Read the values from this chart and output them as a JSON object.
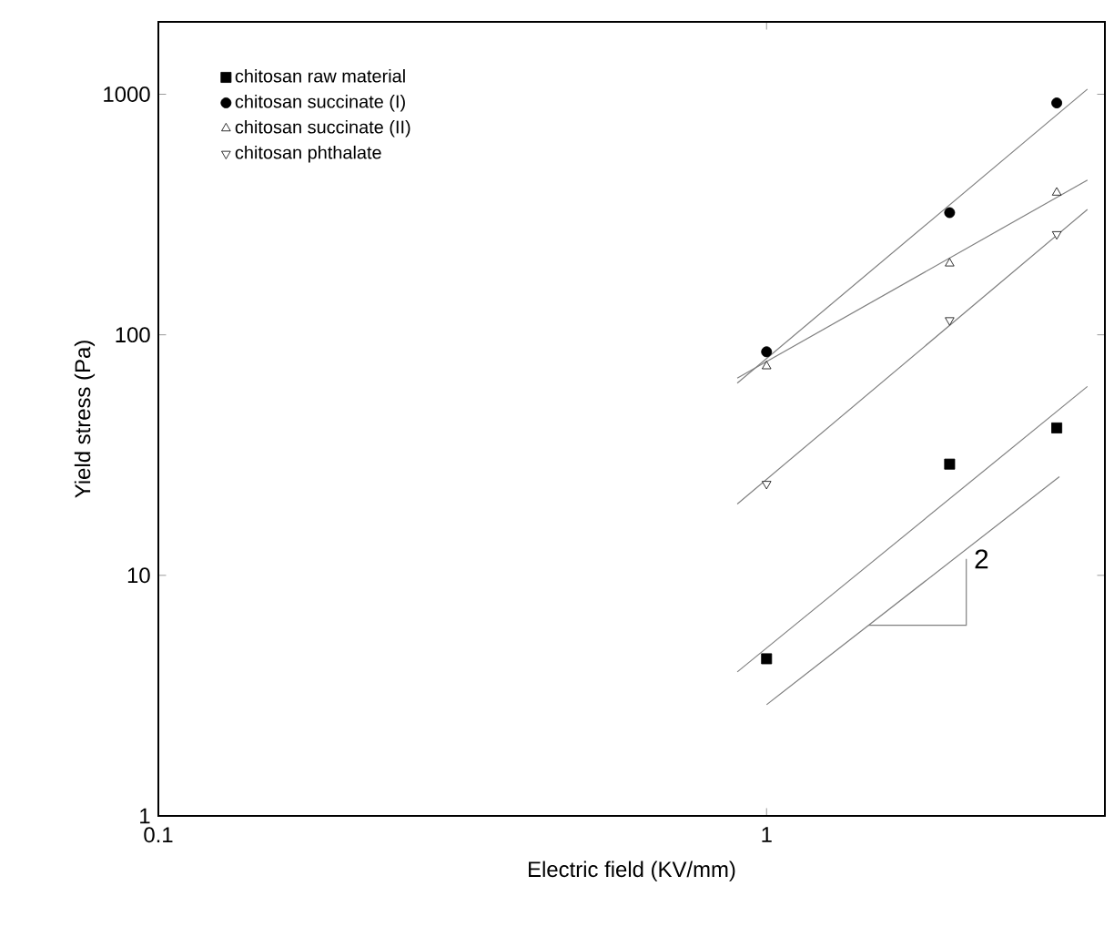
{
  "chart_data": {
    "type": "scatter",
    "xlabel": "Electric field (KV/mm)",
    "ylabel": "Yield stress (Pa)",
    "log": "xy",
    "xlim": [
      0.1,
      3.6
    ],
    "ylim": [
      1,
      2000
    ],
    "xticks": [
      0.1,
      1
    ],
    "yticks": [
      1,
      10,
      100,
      1000
    ],
    "legend": "top left",
    "grid": false,
    "series": [
      {
        "name": "chitosan raw material",
        "color": "#000000",
        "marker": "square",
        "x": [
          1,
          2,
          3
        ],
        "values": [
          4.5,
          29,
          41
        ]
      },
      {
        "name": "chitosan succinate (I)",
        "color": "#000000",
        "marker": "circle",
        "x": [
          1,
          2,
          3
        ],
        "values": [
          85,
          322,
          920
        ]
      },
      {
        "name": "chitosan succinate (II)",
        "color": "#000000",
        "marker": "triangle",
        "x": [
          1,
          2,
          3
        ],
        "values": [
          74,
          198,
          390
        ]
      },
      {
        "name": "chitosan phthalate",
        "color": "#000000",
        "marker": "triangle-down",
        "x": [
          1,
          2,
          3
        ],
        "values": [
          24,
          115,
          262
        ]
      },
      {
        "type": "line",
        "color": "#808080",
        "marker": "none",
        "x": [
          0.895,
          3.37
        ],
        "values": [
          63,
          1050
        ]
      },
      {
        "type": "line",
        "color": "#808080",
        "marker": "none",
        "x": [
          0.895,
          3.37
        ],
        "values": [
          66,
          440
        ]
      },
      {
        "type": "line",
        "color": "#808080",
        "marker": "none",
        "x": [
          0.895,
          3.37
        ],
        "values": [
          19.8,
          332
        ]
      },
      {
        "type": "line",
        "color": "#808080",
        "marker": "none",
        "x": [
          0.895,
          3.37
        ],
        "values": [
          3.97,
          61
        ]
      },
      {
        "type": "line",
        "color": "#808080",
        "marker": "none",
        "x": [
          1.0,
          3.03
        ],
        "values": [
          2.9,
          25.7
        ]
      },
      {
        "type": "line",
        "color": "#808080",
        "marker": "none",
        "x": [
          1.47,
          2.13,
          2.13
        ],
        "values": [
          6.2,
          6.2,
          11.7
        ]
      }
    ],
    "annotations": [
      "2"
    ]
  }
}
